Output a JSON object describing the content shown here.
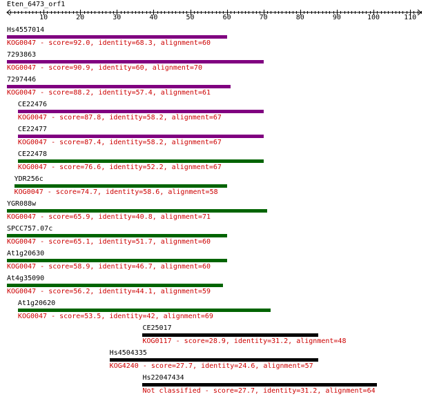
{
  "query": {
    "name": "Eten_6473_orf1"
  },
  "axis": {
    "min": 0,
    "max": 113,
    "ticks": [
      10,
      20,
      30,
      40,
      50,
      60,
      70,
      80,
      90,
      100,
      110
    ]
  },
  "colors": {
    "high": "#800080",
    "mid": "#006400",
    "low": "#000000",
    "desc": "#cc0000"
  },
  "hits": [
    {
      "name": "Hs4557014",
      "start": 1,
      "end": 60,
      "color": "#800080",
      "desc": "KOG0047 - score=92.0, identity=68.3, alignment=60"
    },
    {
      "name": "7293863",
      "start": 1,
      "end": 70,
      "color": "#800080",
      "desc": "KOG0047 - score=90.9, identity=60, alignment=70"
    },
    {
      "name": "7297446",
      "start": 1,
      "end": 61,
      "color": "#800080",
      "desc": "KOG0047 - score=88.2, identity=57.4, alignment=61"
    },
    {
      "name": "CE22476",
      "start": 4,
      "end": 70,
      "color": "#800080",
      "desc": "KOG0047 - score=87.8, identity=58.2, alignment=67"
    },
    {
      "name": "CE22477",
      "start": 4,
      "end": 70,
      "color": "#800080",
      "desc": "KOG0047 - score=87.4, identity=58.2, alignment=67"
    },
    {
      "name": "CE22478",
      "start": 4,
      "end": 70,
      "color": "#006400",
      "desc": "KOG0047 - score=76.6, identity=52.2, alignment=67"
    },
    {
      "name": "YDR256c",
      "start": 3,
      "end": 60,
      "color": "#006400",
      "desc": "KOG0047 - score=74.7, identity=58.6, alignment=58"
    },
    {
      "name": "YGR088w",
      "start": 1,
      "end": 71,
      "color": "#006400",
      "desc": "KOG0047 - score=65.9, identity=40.8, alignment=71"
    },
    {
      "name": "SPCC757.07c",
      "start": 1,
      "end": 60,
      "color": "#006400",
      "desc": "KOG0047 - score=65.1, identity=51.7, alignment=60"
    },
    {
      "name": "At1g20630",
      "start": 1,
      "end": 60,
      "color": "#006400",
      "desc": "KOG0047 - score=58.9, identity=46.7, alignment=60"
    },
    {
      "name": "At4g35090",
      "start": 1,
      "end": 59,
      "color": "#006400",
      "desc": "KOG0047 - score=56.2, identity=44.1, alignment=59"
    },
    {
      "name": "At1g20620",
      "start": 4,
      "end": 72,
      "color": "#006400",
      "desc": "KOG0047 - score=53.5, identity=42, alignment=69"
    },
    {
      "name": "CE25017",
      "start": 38,
      "end": 85,
      "color": "#000000",
      "desc": "KOG0117 - score=28.9, identity=31.2, alignment=48"
    },
    {
      "name": "Hs4504335",
      "start": 29,
      "end": 85,
      "color": "#000000",
      "desc": "KOG4240 - score=27.7, identity=24.6, alignment=57"
    },
    {
      "name": "Hs22047434",
      "start": 38,
      "end": 101,
      "color": "#000000",
      "desc": "Not classified - score=27.7, identity=31.2, alignment=64"
    }
  ]
}
